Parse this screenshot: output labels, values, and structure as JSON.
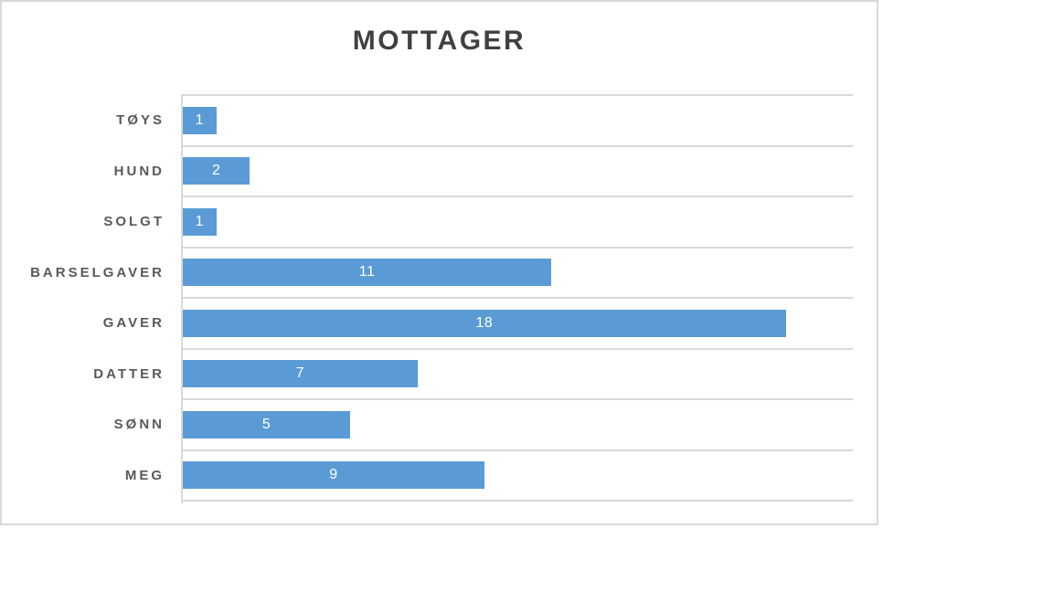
{
  "chart_data": {
    "type": "bar",
    "orientation": "horizontal",
    "title": "MOTTAGER",
    "categories": [
      "TØYS",
      "HUND",
      "SOLGT",
      "BARSELGAVER",
      "GAVER",
      "DATTER",
      "SØNN",
      "MEG"
    ],
    "values": [
      1,
      2,
      1,
      11,
      18,
      7,
      5,
      9
    ],
    "xlabel": "",
    "ylabel": "",
    "xlim": [
      0,
      20
    ],
    "grid": "horizontal-category-separators",
    "legend": "none",
    "data_labels": "inside-center",
    "axis_tick_labels": "none"
  },
  "colors": {
    "bar": "#5b9bd5",
    "grid": "#d9d9d9",
    "border": "#d9d9d9",
    "background": "#ffffff",
    "title_text": "#404040",
    "category_text": "#595959",
    "value_label_text": "#ffffff"
  }
}
